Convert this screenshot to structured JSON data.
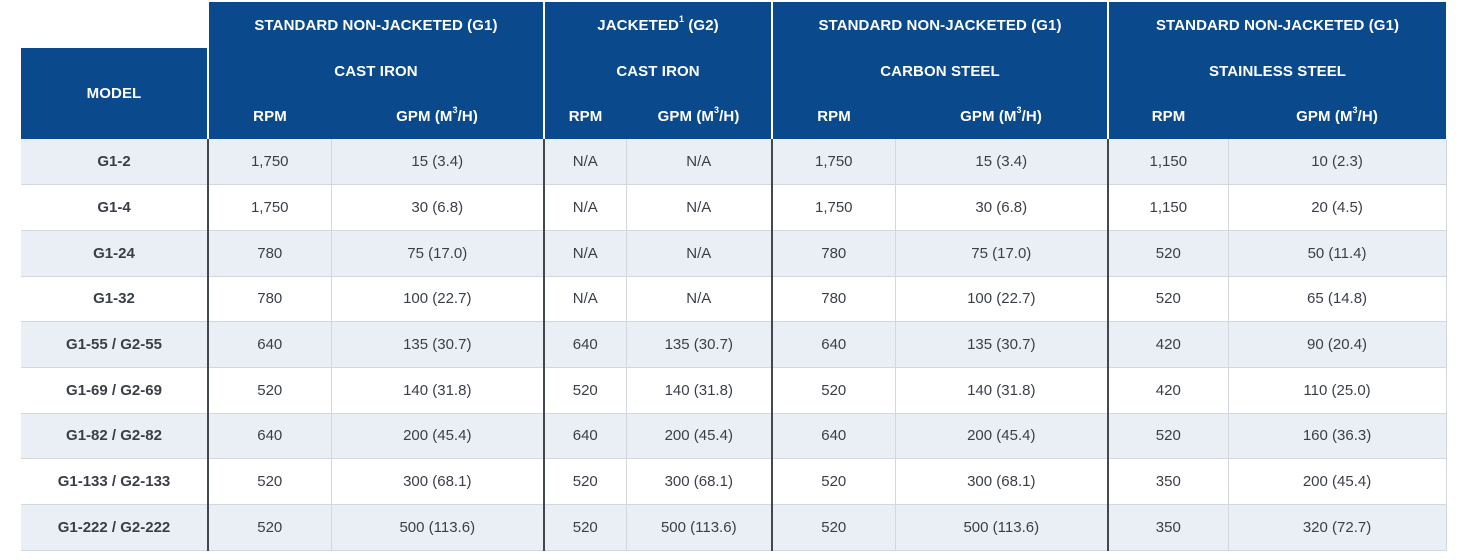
{
  "header": {
    "groups": [
      {
        "type": "STANDARD NON-JACKETED (G1)",
        "material": "CAST IRON"
      },
      {
        "type_prefix": "JACKETED",
        "type_sup": "1",
        "type_suffix": " (G2)",
        "material": "CAST IRON"
      },
      {
        "type": "STANDARD NON-JACKETED (G1)",
        "material": "CARBON STEEL"
      },
      {
        "type": "STANDARD NON-JACKETED (G1)",
        "material": "STAINLESS STEEL"
      }
    ],
    "model_label": "MODEL",
    "rpm_label": "RPM",
    "gpm_label_prefix": "GPM (M",
    "gpm_label_sup": "3",
    "gpm_label_suffix": "/H)"
  },
  "rows": [
    {
      "model": "G1-2",
      "ci_rpm": "1,750",
      "ci_gpm": "15 (3.4)",
      "j_rpm": "N/A",
      "j_gpm": "N/A",
      "cs_rpm": "1,750",
      "cs_gpm": "15 (3.4)",
      "ss_rpm": "1,150",
      "ss_gpm": "10 (2.3)"
    },
    {
      "model": "G1-4",
      "ci_rpm": "1,750",
      "ci_gpm": "30 (6.8)",
      "j_rpm": "N/A",
      "j_gpm": "N/A",
      "cs_rpm": "1,750",
      "cs_gpm": "30 (6.8)",
      "ss_rpm": "1,150",
      "ss_gpm": "20 (4.5)"
    },
    {
      "model": "G1-24",
      "ci_rpm": "780",
      "ci_gpm": "75 (17.0)",
      "j_rpm": "N/A",
      "j_gpm": "N/A",
      "cs_rpm": "780",
      "cs_gpm": "75 (17.0)",
      "ss_rpm": "520",
      "ss_gpm": "50 (11.4)"
    },
    {
      "model": "G1-32",
      "ci_rpm": "780",
      "ci_gpm": "100 (22.7)",
      "j_rpm": "N/A",
      "j_gpm": "N/A",
      "cs_rpm": "780",
      "cs_gpm": "100 (22.7)",
      "ss_rpm": "520",
      "ss_gpm": "65 (14.8)"
    },
    {
      "model": "G1-55 / G2-55",
      "ci_rpm": "640",
      "ci_gpm": "135 (30.7)",
      "j_rpm": "640",
      "j_gpm": "135 (30.7)",
      "cs_rpm": "640",
      "cs_gpm": "135 (30.7)",
      "ss_rpm": "420",
      "ss_gpm": "90 (20.4)"
    },
    {
      "model": "G1-69 / G2-69",
      "ci_rpm": "520",
      "ci_gpm": "140 (31.8)",
      "j_rpm": "520",
      "j_gpm": "140 (31.8)",
      "cs_rpm": "520",
      "cs_gpm": "140 (31.8)",
      "ss_rpm": "420",
      "ss_gpm": "110 (25.0)"
    },
    {
      "model": "G1-82 / G2-82",
      "ci_rpm": "640",
      "ci_gpm": "200 (45.4)",
      "j_rpm": "640",
      "j_gpm": "200 (45.4)",
      "cs_rpm": "640",
      "cs_gpm": "200 (45.4)",
      "ss_rpm": "520",
      "ss_gpm": "160 (36.3)"
    },
    {
      "model": "G1-133 / G2-133",
      "ci_rpm": "520",
      "ci_gpm": "300 (68.1)",
      "j_rpm": "520",
      "j_gpm": "300 (68.1)",
      "cs_rpm": "520",
      "cs_gpm": "300 (68.1)",
      "ss_rpm": "350",
      "ss_gpm": "200 (45.4)"
    },
    {
      "model": "G1-222 / G2-222",
      "ci_rpm": "520",
      "ci_gpm": "500 (113.6)",
      "j_rpm": "520",
      "j_gpm": "500 (113.6)",
      "cs_rpm": "520",
      "cs_gpm": "500 (113.6)",
      "ss_rpm": "350",
      "ss_gpm": "320 (72.7)"
    }
  ],
  "colors": {
    "header_bg": "#0a4a8c",
    "header_text": "#ffffff",
    "row_alt_bg": "#eaeef5",
    "body_text": "#3a3f47",
    "group_divider": "#434850"
  }
}
